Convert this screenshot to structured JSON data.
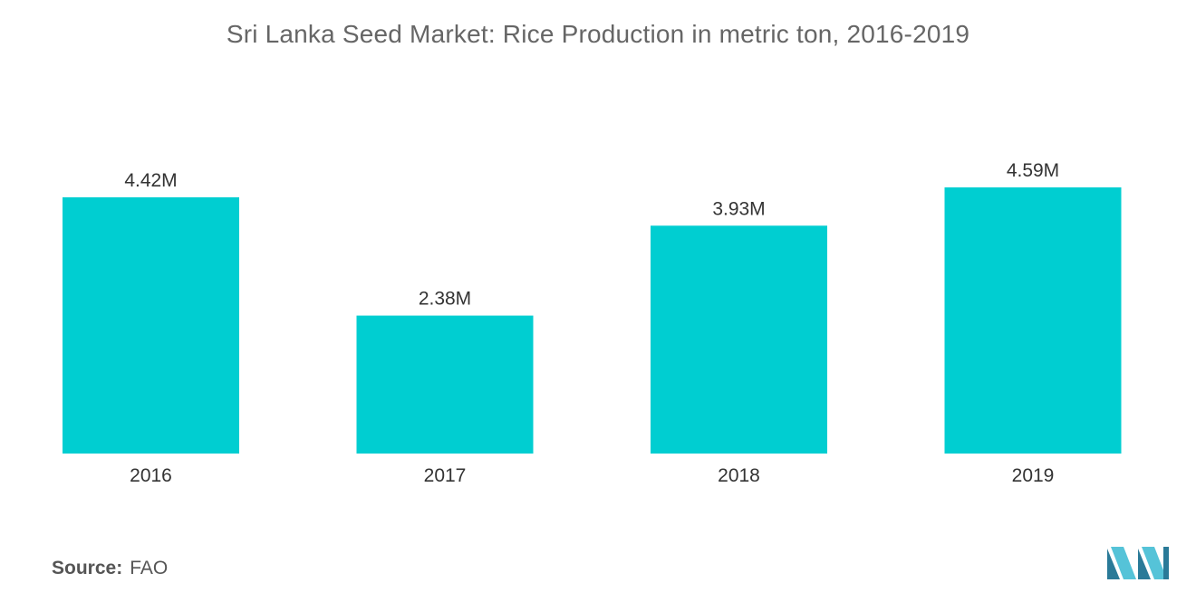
{
  "colors": {
    "bar": "#00CED1",
    "title": "#666666",
    "label": "#333333",
    "logo_dark": "#2a7a98",
    "logo_light": "#55c3d8"
  },
  "source": {
    "label": "Source:",
    "value": "FAO"
  },
  "logo": {
    "icon": "mordor-logo-icon"
  },
  "chart_data": {
    "type": "bar",
    "title": "Sri Lanka Seed Market: Rice Production in metric ton, 2016-2019",
    "categories": [
      "2016",
      "2017",
      "2018",
      "2019"
    ],
    "values": [
      4.42,
      2.38,
      3.93,
      4.59
    ],
    "value_labels": [
      "4.42M",
      "2.38M",
      "3.93M",
      "4.59M"
    ],
    "unit": "M",
    "xlabel": "",
    "ylabel": "",
    "ylim": [
      0,
      4.59
    ],
    "grid": false,
    "legend": "none"
  }
}
